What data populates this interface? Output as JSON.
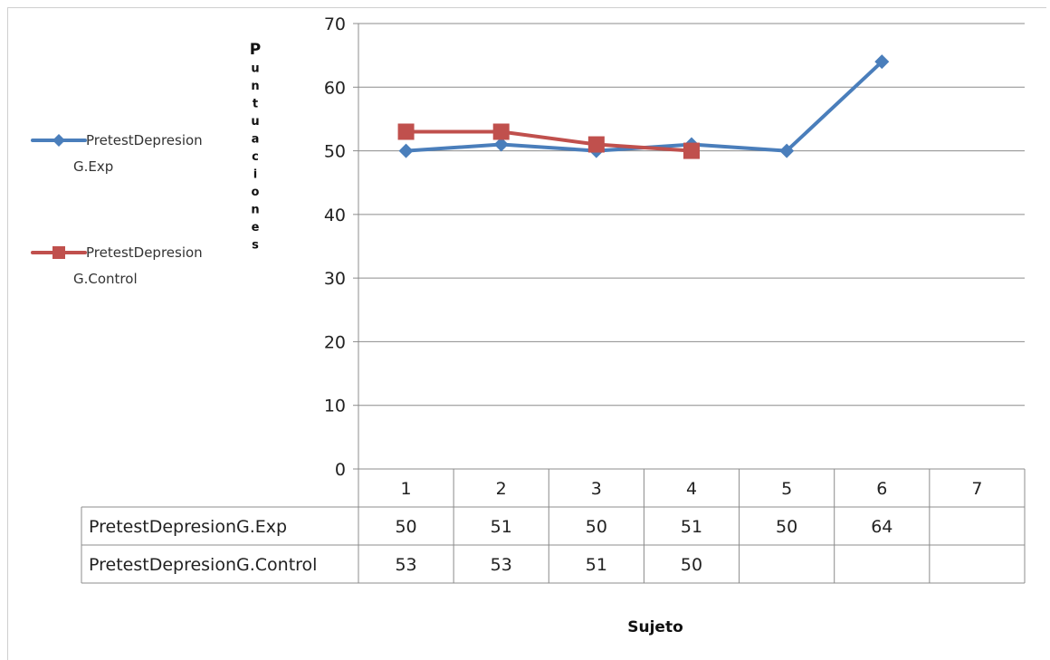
{
  "chart_data": {
    "type": "line",
    "categories": [
      "1",
      "2",
      "3",
      "4",
      "5",
      "6",
      "7"
    ],
    "series": [
      {
        "name": "PretestDepresionG.Exp",
        "legend_lines": [
          "PretestDepresion",
          "G.Exp"
        ],
        "values": [
          50,
          51,
          50,
          51,
          50,
          64,
          null
        ],
        "color": "#4a7ebb",
        "marker": "diamond"
      },
      {
        "name": "PretestDepresionG.Control",
        "legend_lines": [
          "PretestDepresion",
          "G.Control"
        ],
        "values": [
          53,
          53,
          51,
          50,
          null,
          null,
          null
        ],
        "color": "#c0504d",
        "marker": "square"
      }
    ],
    "ylabel_chars": [
      "P",
      "u",
      "n",
      "t",
      "u",
      "a",
      "c",
      "i",
      "o",
      "n",
      "e",
      "s"
    ],
    "xlabel": "Sujeto",
    "yticks": [
      0,
      10,
      20,
      30,
      40,
      50,
      60,
      70
    ],
    "ylim": [
      0,
      70
    ],
    "grid": true,
    "legend_position": "left",
    "data_table": true
  }
}
